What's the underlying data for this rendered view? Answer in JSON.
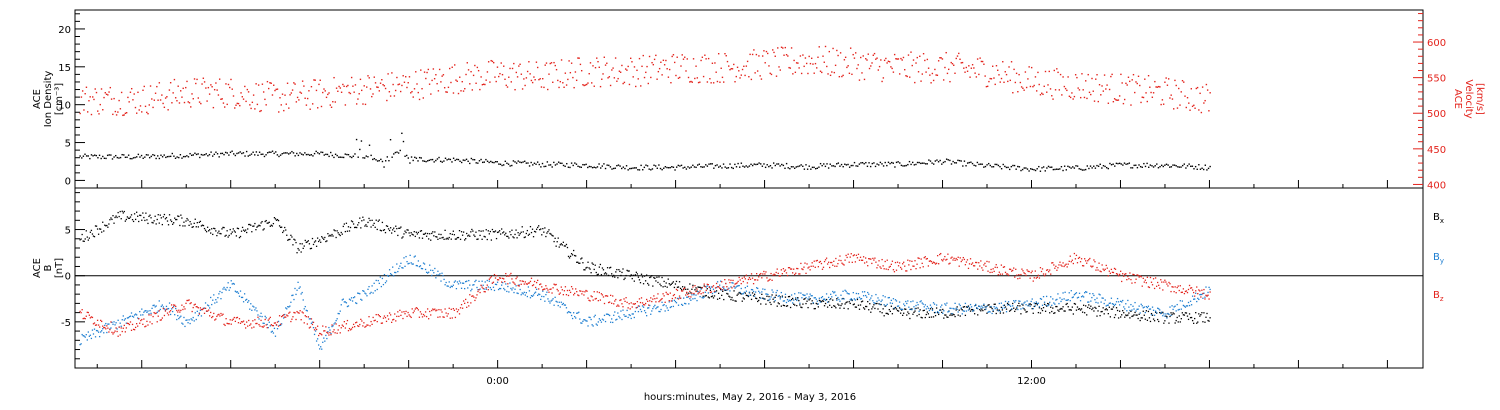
{
  "x_axis": {
    "label": "hours:minutes, May  2, 2016 - May  3, 2016",
    "ticks": [
      "0:00",
      "12:00"
    ]
  },
  "chart_data": [
    {
      "type": "scatter",
      "panel": "top",
      "y_label_left": [
        "ACE",
        "Ion Density",
        "[cm⁻³]"
      ],
      "y_label_right": [
        "ACE",
        "Velocity",
        "[km/s]"
      ],
      "xlim": [
        -9.5,
        20.8
      ],
      "ylim_left": [
        -1,
        22.5
      ],
      "yticks_left": [
        0,
        5,
        10,
        15,
        20
      ],
      "ylim_right": [
        395,
        645
      ],
      "yticks_right": [
        400,
        450,
        500,
        550,
        600
      ],
      "grid": false,
      "series": [
        {
          "axis": "left",
          "color": "#000000",
          "x": [
            -9.4,
            -8,
            -6,
            -4,
            -3,
            -2.6,
            -2.2,
            -2,
            -1,
            0,
            1,
            2,
            3,
            4,
            5,
            6,
            7,
            8,
            9,
            10,
            11,
            12,
            13,
            14,
            15,
            16
          ],
          "y": [
            3.2,
            3.2,
            3.6,
            3.6,
            3.2,
            2.5,
            4.0,
            2.9,
            2.8,
            2.4,
            2.2,
            2.1,
            1.8,
            1.8,
            2.0,
            2.1,
            1.9,
            2.2,
            2.2,
            2.6,
            2.0,
            1.6,
            1.7,
            2.1,
            2.1,
            1.8
          ]
        },
        {
          "axis": "right",
          "color": "#e3231c",
          "x": [
            -9.4,
            -8,
            -7,
            -6,
            -5,
            -4,
            -3,
            -2,
            -1,
            0,
            1,
            2,
            3,
            4,
            5,
            6,
            7,
            8,
            9,
            10,
            11,
            12,
            13,
            14,
            15,
            16
          ],
          "y": [
            520,
            520,
            530,
            530,
            522,
            528,
            535,
            540,
            550,
            555,
            552,
            560,
            560,
            565,
            565,
            570,
            575,
            570,
            565,
            565,
            560,
            545,
            540,
            535,
            530,
            520
          ]
        }
      ]
    },
    {
      "type": "line",
      "panel": "bottom",
      "y_label_left": [
        "ACE",
        "B",
        "[nT]"
      ],
      "xlim": [
        -9.5,
        20.8
      ],
      "ylim": [
        -10,
        9.5
      ],
      "yticks": [
        -5,
        0,
        5
      ],
      "zero_line": true,
      "legend_placement": "right",
      "series": [
        {
          "name": "Bx",
          "label_main": "B",
          "label_sub": "x",
          "color": "#000000",
          "x": [
            -9.4,
            -8.5,
            -7,
            -6,
            -5,
            -4.5,
            -4,
            -3,
            -2,
            -1,
            0,
            1,
            1.5,
            2,
            3,
            4,
            5,
            6,
            7,
            8,
            9,
            10,
            11,
            12,
            13,
            14,
            15,
            16
          ],
          "y": [
            4,
            6.5,
            6,
            4.5,
            6,
            3,
            4,
            6,
            4.5,
            4.5,
            4.5,
            5,
            3,
            1,
            0,
            -1,
            -2,
            -2.5,
            -3,
            -3,
            -4,
            -4,
            -3.5,
            -3.5,
            -3.5,
            -4,
            -4.5,
            -4.5
          ]
        },
        {
          "name": "By",
          "label_main": "B",
          "label_sub": "y",
          "color": "#1f7fd1",
          "x": [
            -9.4,
            -8.5,
            -7.5,
            -7,
            -6,
            -5,
            -4.5,
            -4,
            -3.5,
            -3,
            -2,
            -1,
            0,
            1,
            2,
            3,
            4,
            5,
            6,
            7,
            8,
            9,
            10,
            11,
            12,
            13,
            14,
            15,
            16
          ],
          "y": [
            -7,
            -5,
            -3,
            -5,
            -1,
            -6,
            -1,
            -8,
            -3,
            -2,
            2,
            -1,
            -1,
            -2,
            -5,
            -4,
            -3,
            -1,
            -2,
            -2.5,
            -2,
            -3,
            -3.5,
            -3.5,
            -3,
            -2,
            -3,
            -4,
            -1.5
          ]
        },
        {
          "name": "Bz",
          "label_main": "B",
          "label_sub": "z",
          "color": "#e3231c",
          "x": [
            -9.4,
            -8.5,
            -7.5,
            -7,
            -6,
            -5,
            -4.5,
            -4,
            -3,
            -2,
            -1,
            0,
            1,
            2,
            3,
            4,
            5,
            6,
            7,
            8,
            9,
            10,
            11,
            12,
            13,
            14,
            15,
            16
          ],
          "y": [
            -4,
            -6,
            -4,
            -3,
            -5,
            -5,
            -4,
            -6,
            -5,
            -4,
            -4,
            0,
            -1,
            -2,
            -3,
            -2,
            -1,
            0,
            1,
            2,
            1,
            2,
            1,
            0,
            2,
            0,
            -1,
            -2
          ]
        }
      ]
    }
  ]
}
